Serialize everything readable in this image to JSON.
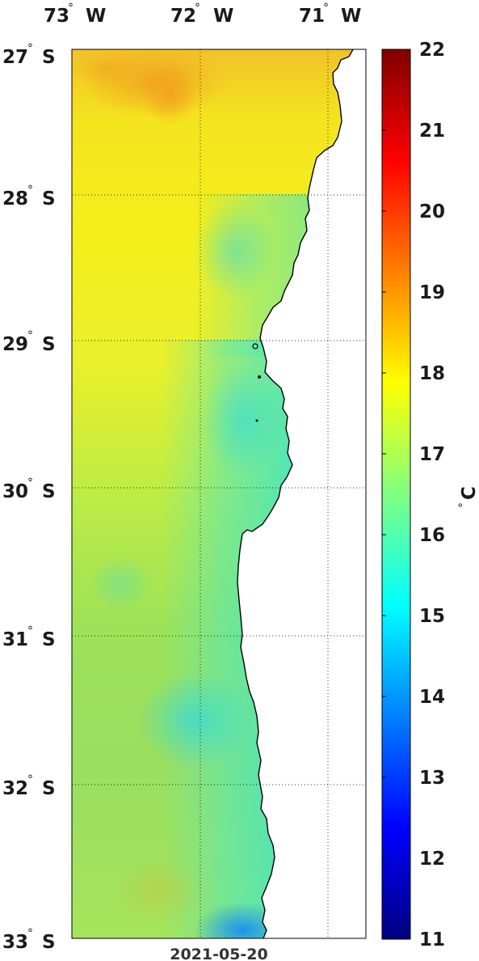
{
  "map": {
    "date": "2021-05-20",
    "units": "C",
    "lon_labels": [
      {
        "deg": "73",
        "hem": "W"
      },
      {
        "deg": "72",
        "hem": "W"
      },
      {
        "deg": "71",
        "hem": "W"
      }
    ],
    "lat_labels": [
      {
        "deg": "27",
        "hem": "S"
      },
      {
        "deg": "28",
        "hem": "S"
      },
      {
        "deg": "29",
        "hem": "S"
      },
      {
        "deg": "30",
        "hem": "S"
      },
      {
        "deg": "31",
        "hem": "S"
      },
      {
        "deg": "32",
        "hem": "S"
      },
      {
        "deg": "33",
        "hem": "S"
      }
    ],
    "colorbar_ticks": [
      "22",
      "21",
      "20",
      "19",
      "18",
      "17",
      "16",
      "15",
      "14",
      "13",
      "12",
      "11"
    ],
    "colorbar_range": [
      11,
      22
    ],
    "colormap": [
      "#800000",
      "#ff0000",
      "#ff8000",
      "#ffff00",
      "#80ff80",
      "#00ffff",
      "#0080ff",
      "#0000ff",
      "#000080"
    ],
    "land_color": "#ffffff",
    "coastline_color": "#000000"
  }
}
